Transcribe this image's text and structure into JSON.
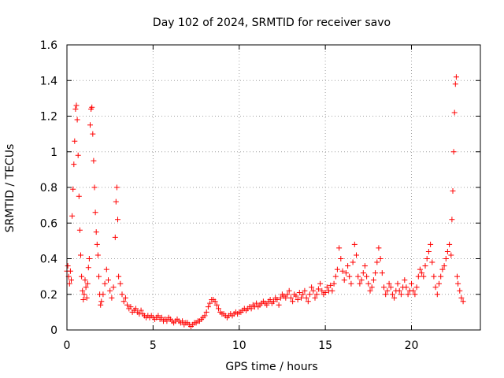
{
  "chart_data": {
    "type": "scatter",
    "title": "Day 102 of 2024, SRMTID for receiver savo",
    "xlabel": "GPS time / hours",
    "ylabel": "SRMTID / TECUs",
    "xlim": [
      0,
      24
    ],
    "ylim": [
      0,
      1.6
    ],
    "x_ticks": [
      0,
      5,
      10,
      15,
      20
    ],
    "x_tick_labels": [
      "0",
      "5",
      "10",
      "15",
      "20"
    ],
    "y_ticks": [
      0,
      0.2,
      0.4,
      0.6,
      0.8,
      1.0,
      1.2,
      1.4,
      1.6
    ],
    "y_tick_labels": [
      "0",
      "0.2",
      "0.4",
      "0.6",
      "0.8",
      "1",
      "1.2",
      "1.4",
      "1.6"
    ],
    "grid": true,
    "marker": "+",
    "color": "#ff0000",
    "series": [
      {
        "name": "SRMTID",
        "points": [
          [
            0.0,
            0.33
          ],
          [
            0.05,
            0.36
          ],
          [
            0.1,
            0.3
          ],
          [
            0.15,
            0.26
          ],
          [
            0.2,
            0.33
          ],
          [
            0.25,
            0.28
          ],
          [
            0.3,
            0.64
          ],
          [
            0.35,
            0.79
          ],
          [
            0.4,
            0.93
          ],
          [
            0.45,
            1.06
          ],
          [
            0.5,
            1.24
          ],
          [
            0.55,
            1.26
          ],
          [
            0.6,
            1.18
          ],
          [
            0.65,
            0.98
          ],
          [
            0.7,
            0.75
          ],
          [
            0.75,
            0.56
          ],
          [
            0.8,
            0.42
          ],
          [
            0.85,
            0.3
          ],
          [
            0.9,
            0.22
          ],
          [
            0.95,
            0.17
          ],
          [
            1.0,
            0.2
          ],
          [
            1.05,
            0.28
          ],
          [
            1.1,
            0.24
          ],
          [
            1.15,
            0.18
          ],
          [
            1.2,
            0.26
          ],
          [
            1.25,
            0.35
          ],
          [
            1.3,
            0.4
          ],
          [
            1.35,
            1.15
          ],
          [
            1.4,
            1.24
          ],
          [
            1.45,
            1.25
          ],
          [
            1.5,
            1.1
          ],
          [
            1.55,
            0.95
          ],
          [
            1.6,
            0.8
          ],
          [
            1.65,
            0.66
          ],
          [
            1.7,
            0.55
          ],
          [
            1.75,
            0.48
          ],
          [
            1.8,
            0.42
          ],
          [
            1.85,
            0.3
          ],
          [
            1.9,
            0.2
          ],
          [
            1.95,
            0.14
          ],
          [
            2.0,
            0.16
          ],
          [
            2.1,
            0.2
          ],
          [
            2.2,
            0.26
          ],
          [
            2.3,
            0.34
          ],
          [
            2.4,
            0.28
          ],
          [
            2.5,
            0.22
          ],
          [
            2.6,
            0.18
          ],
          [
            2.7,
            0.24
          ],
          [
            2.8,
            0.52
          ],
          [
            2.85,
            0.72
          ],
          [
            2.9,
            0.8
          ],
          [
            2.95,
            0.62
          ],
          [
            3.0,
            0.3
          ],
          [
            3.1,
            0.26
          ],
          [
            3.2,
            0.2
          ],
          [
            3.3,
            0.16
          ],
          [
            3.4,
            0.18
          ],
          [
            3.5,
            0.14
          ],
          [
            3.6,
            0.12
          ],
          [
            3.7,
            0.13
          ],
          [
            3.8,
            0.1
          ],
          [
            3.9,
            0.11
          ],
          [
            4.0,
            0.12
          ],
          [
            4.1,
            0.1
          ],
          [
            4.2,
            0.09
          ],
          [
            4.3,
            0.11
          ],
          [
            4.4,
            0.09
          ],
          [
            4.5,
            0.08
          ],
          [
            4.6,
            0.07
          ],
          [
            4.7,
            0.08
          ],
          [
            4.8,
            0.07
          ],
          [
            4.9,
            0.08
          ],
          [
            5.0,
            0.07
          ],
          [
            5.1,
            0.06
          ],
          [
            5.2,
            0.07
          ],
          [
            5.3,
            0.08
          ],
          [
            5.4,
            0.06
          ],
          [
            5.5,
            0.07
          ],
          [
            5.6,
            0.05
          ],
          [
            5.7,
            0.06
          ],
          [
            5.8,
            0.05
          ],
          [
            5.9,
            0.07
          ],
          [
            6.0,
            0.06
          ],
          [
            6.1,
            0.05
          ],
          [
            6.2,
            0.04
          ],
          [
            6.3,
            0.05
          ],
          [
            6.4,
            0.06
          ],
          [
            6.5,
            0.05
          ],
          [
            6.6,
            0.04
          ],
          [
            6.7,
            0.05
          ],
          [
            6.8,
            0.03
          ],
          [
            6.9,
            0.04
          ],
          [
            7.0,
            0.04
          ],
          [
            7.1,
            0.03
          ],
          [
            7.2,
            0.02
          ],
          [
            7.3,
            0.03
          ],
          [
            7.4,
            0.04
          ],
          [
            7.5,
            0.04
          ],
          [
            7.6,
            0.05
          ],
          [
            7.7,
            0.05
          ],
          [
            7.8,
            0.06
          ],
          [
            7.9,
            0.07
          ],
          [
            8.0,
            0.08
          ],
          [
            8.1,
            0.1
          ],
          [
            8.2,
            0.13
          ],
          [
            8.3,
            0.15
          ],
          [
            8.4,
            0.17
          ],
          [
            8.5,
            0.17
          ],
          [
            8.6,
            0.16
          ],
          [
            8.7,
            0.14
          ],
          [
            8.8,
            0.12
          ],
          [
            8.9,
            0.1
          ],
          [
            9.0,
            0.09
          ],
          [
            9.1,
            0.09
          ],
          [
            9.2,
            0.08
          ],
          [
            9.3,
            0.07
          ],
          [
            9.4,
            0.08
          ],
          [
            9.5,
            0.09
          ],
          [
            9.6,
            0.08
          ],
          [
            9.7,
            0.09
          ],
          [
            9.8,
            0.1
          ],
          [
            9.9,
            0.09
          ],
          [
            10.0,
            0.1
          ],
          [
            10.1,
            0.1
          ],
          [
            10.2,
            0.11
          ],
          [
            10.3,
            0.12
          ],
          [
            10.4,
            0.11
          ],
          [
            10.5,
            0.12
          ],
          [
            10.6,
            0.13
          ],
          [
            10.7,
            0.12
          ],
          [
            10.8,
            0.14
          ],
          [
            10.9,
            0.13
          ],
          [
            11.0,
            0.15
          ],
          [
            11.1,
            0.13
          ],
          [
            11.2,
            0.14
          ],
          [
            11.3,
            0.15
          ],
          [
            11.4,
            0.16
          ],
          [
            11.5,
            0.15
          ],
          [
            11.6,
            0.14
          ],
          [
            11.7,
            0.16
          ],
          [
            11.8,
            0.17
          ],
          [
            11.9,
            0.15
          ],
          [
            12.0,
            0.16
          ],
          [
            12.1,
            0.18
          ],
          [
            12.2,
            0.17
          ],
          [
            12.3,
            0.14
          ],
          [
            12.4,
            0.18
          ],
          [
            12.5,
            0.2
          ],
          [
            12.6,
            0.19
          ],
          [
            12.7,
            0.18
          ],
          [
            12.8,
            0.2
          ],
          [
            12.9,
            0.22
          ],
          [
            13.0,
            0.18
          ],
          [
            13.1,
            0.16
          ],
          [
            13.2,
            0.2
          ],
          [
            13.3,
            0.19
          ],
          [
            13.4,
            0.17
          ],
          [
            13.5,
            0.21
          ],
          [
            13.6,
            0.18
          ],
          [
            13.7,
            0.2
          ],
          [
            13.8,
            0.22
          ],
          [
            13.9,
            0.18
          ],
          [
            14.0,
            0.16
          ],
          [
            14.1,
            0.2
          ],
          [
            14.2,
            0.24
          ],
          [
            14.3,
            0.22
          ],
          [
            14.4,
            0.18
          ],
          [
            14.5,
            0.2
          ],
          [
            14.6,
            0.23
          ],
          [
            14.7,
            0.26
          ],
          [
            14.8,
            0.22
          ],
          [
            14.9,
            0.2
          ],
          [
            15.0,
            0.21
          ],
          [
            15.1,
            0.24
          ],
          [
            15.2,
            0.22
          ],
          [
            15.3,
            0.25
          ],
          [
            15.4,
            0.22
          ],
          [
            15.5,
            0.26
          ],
          [
            15.6,
            0.3
          ],
          [
            15.7,
            0.34
          ],
          [
            15.8,
            0.46
          ],
          [
            15.9,
            0.4
          ],
          [
            16.0,
            0.33
          ],
          [
            16.1,
            0.28
          ],
          [
            16.2,
            0.32
          ],
          [
            16.3,
            0.36
          ],
          [
            16.4,
            0.3
          ],
          [
            16.5,
            0.26
          ],
          [
            16.6,
            0.38
          ],
          [
            16.7,
            0.48
          ],
          [
            16.8,
            0.42
          ],
          [
            16.9,
            0.3
          ],
          [
            17.0,
            0.26
          ],
          [
            17.1,
            0.28
          ],
          [
            17.2,
            0.32
          ],
          [
            17.3,
            0.36
          ],
          [
            17.4,
            0.3
          ],
          [
            17.5,
            0.26
          ],
          [
            17.6,
            0.22
          ],
          [
            17.7,
            0.24
          ],
          [
            17.8,
            0.28
          ],
          [
            17.9,
            0.32
          ],
          [
            18.0,
            0.38
          ],
          [
            18.1,
            0.46
          ],
          [
            18.2,
            0.4
          ],
          [
            18.3,
            0.32
          ],
          [
            18.4,
            0.24
          ],
          [
            18.5,
            0.2
          ],
          [
            18.6,
            0.22
          ],
          [
            18.7,
            0.26
          ],
          [
            18.8,
            0.24
          ],
          [
            18.9,
            0.2
          ],
          [
            19.0,
            0.18
          ],
          [
            19.1,
            0.22
          ],
          [
            19.2,
            0.26
          ],
          [
            19.3,
            0.22
          ],
          [
            19.4,
            0.2
          ],
          [
            19.5,
            0.24
          ],
          [
            19.6,
            0.28
          ],
          [
            19.7,
            0.24
          ],
          [
            19.8,
            0.2
          ],
          [
            19.9,
            0.22
          ],
          [
            20.0,
            0.26
          ],
          [
            20.1,
            0.22
          ],
          [
            20.2,
            0.2
          ],
          [
            20.3,
            0.24
          ],
          [
            20.4,
            0.3
          ],
          [
            20.5,
            0.34
          ],
          [
            20.6,
            0.32
          ],
          [
            20.7,
            0.3
          ],
          [
            20.8,
            0.36
          ],
          [
            20.9,
            0.4
          ],
          [
            21.0,
            0.44
          ],
          [
            21.1,
            0.48
          ],
          [
            21.2,
            0.38
          ],
          [
            21.3,
            0.3
          ],
          [
            21.4,
            0.24
          ],
          [
            21.5,
            0.2
          ],
          [
            21.6,
            0.26
          ],
          [
            21.7,
            0.3
          ],
          [
            21.8,
            0.34
          ],
          [
            21.9,
            0.36
          ],
          [
            22.0,
            0.4
          ],
          [
            22.1,
            0.44
          ],
          [
            22.2,
            0.48
          ],
          [
            22.3,
            0.42
          ],
          [
            22.35,
            0.62
          ],
          [
            22.4,
            0.78
          ],
          [
            22.45,
            1.0
          ],
          [
            22.5,
            1.22
          ],
          [
            22.55,
            1.38
          ],
          [
            22.6,
            1.42
          ],
          [
            22.65,
            0.3
          ],
          [
            22.7,
            0.26
          ],
          [
            22.8,
            0.22
          ],
          [
            22.9,
            0.18
          ],
          [
            23.0,
            0.16
          ]
        ]
      }
    ]
  }
}
